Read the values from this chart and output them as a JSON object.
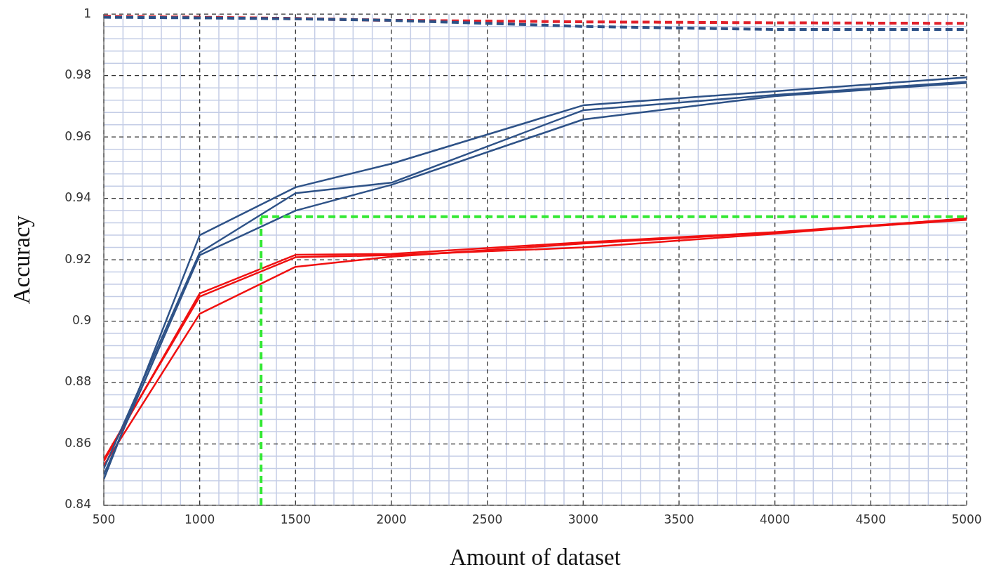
{
  "chart_data": {
    "type": "line",
    "xlabel": "Amount of dataset",
    "ylabel": "Accuracy",
    "x": [
      500,
      1000,
      1500,
      2000,
      3000,
      4000,
      5000
    ],
    "series": [
      {
        "color": "#2e5287",
        "values": [
          0.8485,
          0.928,
          0.9436,
          0.9513,
          0.9703,
          0.9749,
          0.9794
        ]
      },
      {
        "color": "#2e5287",
        "values": [
          0.852,
          0.9223,
          0.9417,
          0.9451,
          0.9687,
          0.9737,
          0.978
        ]
      },
      {
        "color": "#2e5287",
        "values": [
          0.85,
          0.9215,
          0.936,
          0.9444,
          0.9657,
          0.9733,
          0.9776
        ]
      },
      {
        "color": "#f01010",
        "values": [
          0.8544,
          0.909,
          0.9216,
          0.9219,
          0.9257,
          0.929,
          0.9333
        ]
      },
      {
        "color": "#f01010",
        "values": [
          0.855,
          0.908,
          0.9208,
          0.9215,
          0.924,
          0.9285,
          0.9335
        ]
      },
      {
        "color": "#f01010",
        "values": [
          0.853,
          0.9024,
          0.9177,
          0.921,
          0.9253,
          0.9288,
          0.933
        ]
      },
      {
        "color": "#2e5287",
        "line_style": "dashed",
        "values": [
          0.999,
          0.9988,
          0.9985,
          0.998,
          0.996,
          0.995,
          0.995
        ]
      },
      {
        "color": "#e0202a",
        "line_style": "dashed",
        "values": [
          0.9993,
          0.999,
          0.9986,
          0.998,
          0.9975,
          0.9972,
          0.997
        ]
      }
    ],
    "ref_lines": [
      {
        "axis": "x",
        "value": 1320,
        "color": "#33e833",
        "line_style": "dashed"
      },
      {
        "axis": "y",
        "value": 0.934,
        "color": "#33e833",
        "line_style": "dashed"
      }
    ],
    "xlim": [
      500,
      5000
    ],
    "xticks": [
      500,
      {
        "value": 600,
        "label": null
      },
      {
        "value": 700,
        "label": null
      },
      {
        "value": 800,
        "label": null
      },
      {
        "value": 900,
        "label": null
      },
      1000,
      {
        "value": 1100,
        "label": null
      },
      {
        "value": 1200,
        "label": null
      },
      {
        "value": 1300,
        "label": null
      },
      {
        "value": 1400,
        "label": null
      },
      1500,
      {
        "value": 1600,
        "label": null
      },
      {
        "value": 1700,
        "label": null
      },
      {
        "value": 1800,
        "label": null
      },
      {
        "value": 1900,
        "label": null
      },
      2000,
      {
        "value": 2100,
        "label": null
      },
      {
        "value": 2200,
        "label": null
      },
      {
        "value": 2300,
        "label": null
      },
      {
        "value": 2400,
        "label": null
      },
      2500,
      {
        "value": 2600,
        "label": null
      },
      {
        "value": 2700,
        "label": null
      },
      {
        "value": 2800,
        "label": null
      },
      {
        "value": 2900,
        "label": null
      },
      3000,
      {
        "value": 3100,
        "label": null
      },
      {
        "value": 3200,
        "label": null
      },
      {
        "value": 3300,
        "label": null
      },
      {
        "value": 3400,
        "label": null
      },
      3500,
      {
        "value": 3600,
        "label": null
      },
      {
        "value": 3700,
        "label": null
      },
      {
        "value": 3800,
        "label": null
      },
      {
        "value": 3900,
        "label": null
      },
      4000,
      {
        "value": 4100,
        "label": null
      },
      {
        "value": 4200,
        "label": null
      },
      {
        "value": 4300,
        "label": null
      },
      {
        "value": 4400,
        "label": null
      },
      4500,
      {
        "value": 4600,
        "label": null
      },
      {
        "value": 4700,
        "label": null
      },
      {
        "value": 4800,
        "label": null
      },
      {
        "value": 4900,
        "label": null
      },
      5000
    ],
    "ylim": [
      0.84,
      1
    ],
    "yticks": [
      0.84,
      {
        "value": 0.844,
        "label": null
      },
      {
        "value": 0.848,
        "label": null
      },
      {
        "value": 0.852,
        "label": null
      },
      {
        "value": 0.856,
        "label": null
      },
      0.86,
      {
        "value": 0.864,
        "label": null
      },
      {
        "value": 0.868,
        "label": null
      },
      {
        "value": 0.872,
        "label": null
      },
      {
        "value": 0.876,
        "label": null
      },
      0.88,
      {
        "value": 0.884,
        "label": null
      },
      {
        "value": 0.888,
        "label": null
      },
      {
        "value": 0.892,
        "label": null
      },
      {
        "value": 0.896,
        "label": null
      },
      0.9,
      {
        "value": 0.904,
        "label": null
      },
      {
        "value": 0.908,
        "label": null
      },
      {
        "value": 0.912,
        "label": null
      },
      {
        "value": 0.916,
        "label": null
      },
      0.92,
      {
        "value": 0.924,
        "label": null
      },
      {
        "value": 0.928,
        "label": null
      },
      {
        "value": 0.932,
        "label": null
      },
      {
        "value": 0.936,
        "label": null
      },
      0.94,
      {
        "value": 0.944,
        "label": null
      },
      {
        "value": 0.948,
        "label": null
      },
      {
        "value": 0.952,
        "label": null
      },
      {
        "value": 0.956,
        "label": null
      },
      0.96,
      {
        "value": 0.964,
        "label": null
      },
      {
        "value": 0.968,
        "label": null
      },
      {
        "value": 0.972,
        "label": null
      },
      {
        "value": 0.976,
        "label": null
      },
      0.98,
      {
        "value": 0.984,
        "label": null
      },
      {
        "value": 0.988,
        "label": null
      },
      {
        "value": 0.992,
        "label": null
      },
      {
        "value": 0.996,
        "label": null
      },
      1
    ],
    "grid": true,
    "legend": false,
    "marker": "none",
    "line_style": "solid"
  }
}
